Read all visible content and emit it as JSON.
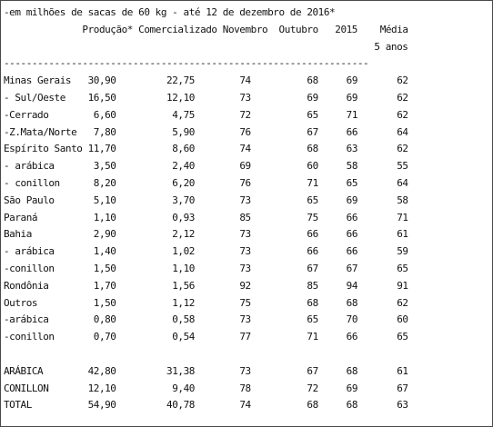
{
  "caption": "-em milhões de sacas de 60 kg - até 12 de dezembro de 2016*",
  "headers": {
    "producao": "Produção*",
    "comercializado": "Comercializado",
    "novembro": "Novembro",
    "outubro": "Outubro",
    "ano_2015": "2015",
    "media": "Média",
    "media_sub": "5 anos"
  },
  "separator": "-----------------------------------------------------------------",
  "rows": [
    {
      "region": "Minas Gerais",
      "producao": "30,90",
      "comercializado": "22,75",
      "novembro": "74",
      "outubro": "68",
      "ano_2015": "69",
      "media": "62"
    },
    {
      "region": "- Sul/Oeste",
      "producao": "16,50",
      "comercializado": "12,10",
      "novembro": "73",
      "outubro": "69",
      "ano_2015": "69",
      "media": "62"
    },
    {
      "region": "-Cerrado",
      "producao": "6,60",
      "comercializado": "4,75",
      "novembro": "72",
      "outubro": "65",
      "ano_2015": "71",
      "media": "62"
    },
    {
      "region": "-Z.Mata/Norte",
      "producao": "7,80",
      "comercializado": "5,90",
      "novembro": "76",
      "outubro": "67",
      "ano_2015": "66",
      "media": "64"
    },
    {
      "region": "Espírito Santo",
      "producao": "11,70",
      "comercializado": "8,60",
      "novembro": "74",
      "outubro": "68",
      "ano_2015": "63",
      "media": "62"
    },
    {
      "region": "- arábica",
      "producao": "3,50",
      "comercializado": "2,40",
      "novembro": "69",
      "outubro": "60",
      "ano_2015": "58",
      "media": "55"
    },
    {
      "region": "- conillon",
      "producao": "8,20",
      "comercializado": "6,20",
      "novembro": "76",
      "outubro": "71",
      "ano_2015": "65",
      "media": "64"
    },
    {
      "region": "São Paulo",
      "producao": "5,10",
      "comercializado": "3,70",
      "novembro": "73",
      "outubro": "65",
      "ano_2015": "69",
      "media": "58"
    },
    {
      "region": "Paraná",
      "producao": "1,10",
      "comercializado": "0,93",
      "novembro": "85",
      "outubro": "75",
      "ano_2015": "66",
      "media": "71"
    },
    {
      "region": "Bahia",
      "producao": "2,90",
      "comercializado": "2,12",
      "novembro": "73",
      "outubro": "66",
      "ano_2015": "66",
      "media": "61"
    },
    {
      "region": "- arábica",
      "producao": "1,40",
      "comercializado": "1,02",
      "novembro": "73",
      "outubro": "66",
      "ano_2015": "66",
      "media": "59"
    },
    {
      "region": "-conillon",
      "producao": "1,50",
      "comercializado": "1,10",
      "novembro": "73",
      "outubro": "67",
      "ano_2015": "67",
      "media": "65"
    },
    {
      "region": "Rondônia",
      "producao": "1,70",
      "comercializado": "1,56",
      "novembro": "92",
      "outubro": "85",
      "ano_2015": "94",
      "media": "91"
    },
    {
      "region": "Outros",
      "producao": "1,50",
      "comercializado": "1,12",
      "novembro": "75",
      "outubro": "68",
      "ano_2015": "68",
      "media": "62"
    },
    {
      "region": "-arábica",
      "producao": "0,80",
      "comercializado": "0,58",
      "novembro": "73",
      "outubro": "65",
      "ano_2015": "70",
      "media": "60"
    },
    {
      "region": "-conillon",
      "producao": "0,70",
      "comercializado": "0,54",
      "novembro": "77",
      "outubro": "71",
      "ano_2015": "66",
      "media": "65"
    }
  ],
  "totals": [
    {
      "region": "ARÁBICA",
      "producao": "42,80",
      "comercializado": "31,38",
      "novembro": "73",
      "outubro": "67",
      "ano_2015": "68",
      "media": "61"
    },
    {
      "region": "CONILLON",
      "producao": "12,10",
      "comercializado": "9,40",
      "novembro": "78",
      "outubro": "72",
      "ano_2015": "69",
      "media": "67"
    },
    {
      "region": "TOTAL",
      "producao": "54,90",
      "comercializado": "40,78",
      "novembro": "74",
      "outubro": "68",
      "ano_2015": "68",
      "media": "63"
    }
  ]
}
